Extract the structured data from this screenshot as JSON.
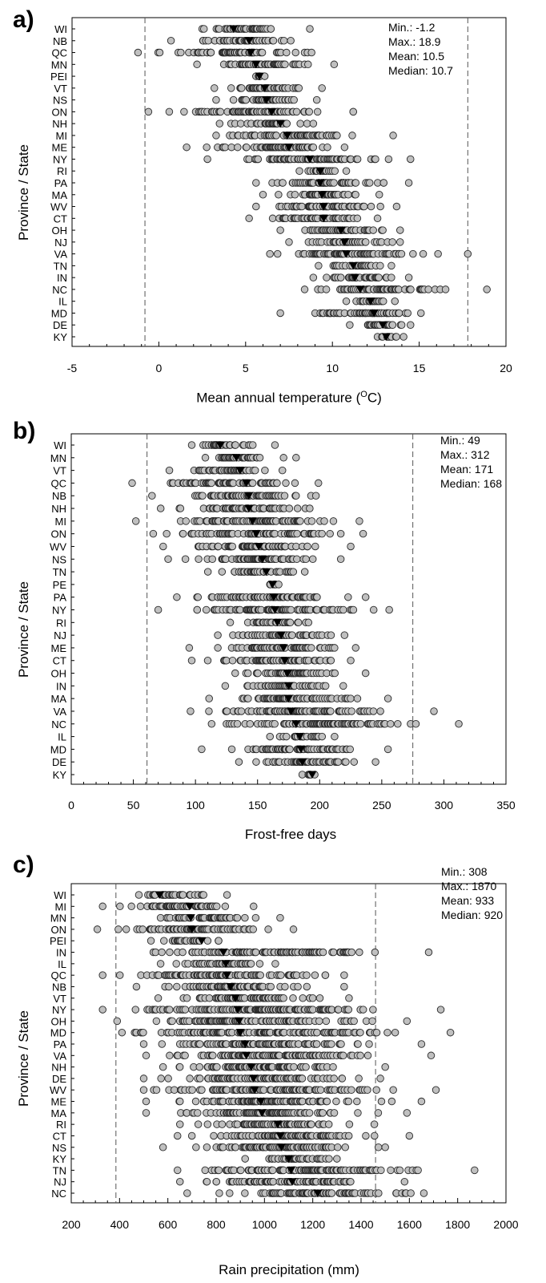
{
  "charts": [
    {
      "panel_label": "a)",
      "xlabel_text": "Mean annual temperature (",
      "xlabel_sup": "O",
      "xlabel_tail": "C)",
      "ylabel": "Province / State",
      "stats": [
        "Min.: -1.2",
        "Max.: 18.9",
        "Mean: 10.5",
        "Median: 10.7"
      ]
    },
    {
      "panel_label": "b)",
      "xlabel_text": "Frost-free days",
      "ylabel": "Province / State",
      "stats": [
        "Min.: 49",
        "Max.: 312",
        "Mean: 171",
        "Median: 168"
      ]
    },
    {
      "panel_label": "c)",
      "xlabel_text": "Rain precipitation (mm)",
      "ylabel": "Province / State",
      "stats": [
        "Min.: 308",
        "Max.: 1870",
        "Mean: 933",
        "Median: 920"
      ]
    }
  ],
  "chart_data": [
    {
      "type": "scatter",
      "title": "",
      "xlabel": "Mean annual temperature (OC)",
      "ylabel": "Province / State",
      "xlim": [
        -5,
        20
      ],
      "xticks": [
        -5,
        0,
        5,
        10,
        15,
        20
      ],
      "minor_ticks_per_interval": 5,
      "grid": false,
      "legend": "none",
      "point_color": "#c0c0c0",
      "marker_color": "#000000",
      "reference_lines": [
        -0.8,
        17.8
      ],
      "categories": [
        "WI",
        "NB",
        "QC",
        "MN",
        "PEI",
        "VT",
        "NS",
        "ON",
        "NH",
        "MI",
        "ME",
        "NY",
        "RI",
        "PA",
        "MA",
        "WV",
        "CT",
        "OH",
        "NJ",
        "VA",
        "TN",
        "IN",
        "NC",
        "IL",
        "MD",
        "DE",
        "KY"
      ],
      "ranges": [
        [
          2.5,
          8.7
        ],
        [
          0.7,
          7.6
        ],
        [
          -1.2,
          8.8
        ],
        [
          2.2,
          10.1
        ],
        [
          5.6,
          6.1
        ],
        [
          3.2,
          9.4
        ],
        [
          3.3,
          9.1
        ],
        [
          -0.6,
          11.2
        ],
        [
          3.5,
          8.9
        ],
        [
          3.3,
          13.5
        ],
        [
          1.6,
          10.7
        ],
        [
          2.8,
          14.5
        ],
        [
          8.1,
          10.8
        ],
        [
          5.6,
          14.4
        ],
        [
          6.0,
          12.7
        ],
        [
          5.6,
          13.7
        ],
        [
          5.2,
          12.6
        ],
        [
          7.0,
          13.9
        ],
        [
          7.5,
          13.9
        ],
        [
          6.4,
          17.8
        ],
        [
          9.2,
          13.4
        ],
        [
          8.9,
          14.4
        ],
        [
          8.4,
          18.9
        ],
        [
          10.8,
          13.6
        ],
        [
          7.0,
          15.1
        ],
        [
          11.0,
          14.5
        ],
        [
          12.6,
          14.1
        ]
      ],
      "median_markers": [
        4.3,
        5.2,
        5.3,
        5.6,
        5.8,
        6.1,
        6.2,
        6.5,
        7.0,
        7.4,
        7.5,
        8.7,
        9.3,
        9.3,
        9.4,
        9.5,
        9.5,
        10.5,
        10.7,
        10.8,
        11.2,
        11.3,
        11.6,
        12.2,
        12.4,
        12.9,
        13.1
      ],
      "outliers": [
        [
          9.6,
          13.0
        ],
        [
          9.6,
          13.5
        ],
        [
          9.4,
          18.9
        ],
        [
          9.4,
          17.1
        ],
        [
          9.4,
          16.0
        ],
        [
          9.4,
          15.3
        ],
        [
          6.4,
          13.1
        ],
        [
          6.4,
          13.4
        ]
      ]
    },
    {
      "type": "scatter",
      "title": "",
      "xlabel": "Frost-free days",
      "ylabel": "Province / State",
      "xlim": [
        0,
        350
      ],
      "xticks": [
        0,
        50,
        100,
        150,
        200,
        250,
        300,
        350
      ],
      "minor_ticks_per_interval": 5,
      "grid": false,
      "legend": "none",
      "point_color": "#c0c0c0",
      "marker_color": "#000000",
      "reference_lines": [
        61,
        275
      ],
      "categories": [
        "WI",
        "MN",
        "VT",
        "QC",
        "NB",
        "NH",
        "MI",
        "ON",
        "WV",
        "NS",
        "TN",
        "PE",
        "PA",
        "NY",
        "RI",
        "NJ",
        "ME",
        "CT",
        "OH",
        "IN",
        "MA",
        "VA",
        "NC",
        "IL",
        "MD",
        "DE",
        "KY"
      ],
      "ranges": [
        [
          97,
          164
        ],
        [
          108,
          181
        ],
        [
          79,
          170
        ],
        [
          49,
          199
        ],
        [
          65,
          197
        ],
        [
          72,
          192
        ],
        [
          52,
          232
        ],
        [
          66,
          235
        ],
        [
          74,
          225
        ],
        [
          78,
          217
        ],
        [
          110,
          188
        ],
        [
          160,
          167
        ],
        [
          85,
          237
        ],
        [
          70,
          256
        ],
        [
          128,
          191
        ],
        [
          118,
          220
        ],
        [
          95,
          229
        ],
        [
          97,
          225
        ],
        [
          132,
          237
        ],
        [
          124,
          219
        ],
        [
          111,
          255
        ],
        [
          96,
          292
        ],
        [
          113,
          312
        ],
        [
          160,
          212
        ],
        [
          105,
          255
        ],
        [
          135,
          245
        ],
        [
          186,
          196
        ]
      ],
      "median_markers": [
        120,
        133,
        136,
        141,
        143,
        143,
        146,
        149,
        151,
        154,
        157,
        162,
        163,
        164,
        166,
        169,
        171,
        172,
        174,
        175,
        175,
        177,
        181,
        184,
        185,
        186,
        194
      ]
    },
    {
      "type": "scatter",
      "title": "",
      "xlabel": "Rain precipitation (mm)",
      "ylabel": "Province / State",
      "xlim": [
        200,
        2000
      ],
      "xticks": [
        200,
        400,
        600,
        800,
        1000,
        1200,
        1400,
        1600,
        1800,
        2000
      ],
      "minor_ticks_per_interval": 4,
      "grid": false,
      "legend": "none",
      "point_color": "#c0c0c0",
      "marker_color": "#000000",
      "reference_lines": [
        385,
        1460
      ],
      "categories": [
        "WI",
        "MI",
        "MN",
        "ON",
        "PEI",
        "IN",
        "IL",
        "QC",
        "NB",
        "VT",
        "NY",
        "OH",
        "MD",
        "PA",
        "VA",
        "NH",
        "DE",
        "WV",
        "ME",
        "MA",
        "RI",
        "CT",
        "NS",
        "KY",
        "TN",
        "NJ",
        "NC"
      ],
      "ranges": [
        [
          480,
          845
        ],
        [
          330,
          955
        ],
        [
          570,
          1065
        ],
        [
          308,
          1120
        ],
        [
          530,
          810
        ],
        [
          540,
          1680
        ],
        [
          570,
          1045
        ],
        [
          330,
          1330
        ],
        [
          470,
          1330
        ],
        [
          560,
          1350
        ],
        [
          330,
          1730
        ],
        [
          390,
          1590
        ],
        [
          410,
          1770
        ],
        [
          500,
          1650
        ],
        [
          510,
          1690
        ],
        [
          580,
          1500
        ],
        [
          500,
          1480
        ],
        [
          500,
          1710
        ],
        [
          510,
          1650
        ],
        [
          510,
          1590
        ],
        [
          650,
          1455
        ],
        [
          640,
          1600
        ],
        [
          580,
          1500
        ],
        [
          920,
          1300
        ],
        [
          640,
          1870
        ],
        [
          650,
          1580
        ],
        [
          680,
          1660
        ]
      ],
      "median_markers": [
        565,
        690,
        695,
        700,
        740,
        830,
        840,
        845,
        860,
        880,
        890,
        895,
        900,
        920,
        925,
        945,
        955,
        960,
        985,
        990,
        1055,
        1065,
        1070,
        1100,
        1110,
        1115,
        1220
      ]
    }
  ]
}
